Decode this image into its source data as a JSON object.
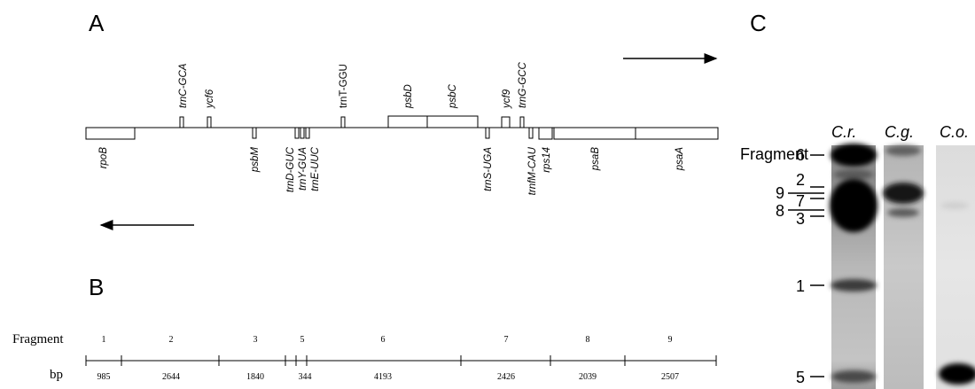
{
  "panels": {
    "a": "A",
    "b": "B",
    "c": "C"
  },
  "genes_top": [
    {
      "label": "trnC-GCA",
      "italic": true
    },
    {
      "label": "ycf6",
      "italic": true
    },
    {
      "label": "trnT-GGU",
      "italic": false
    },
    {
      "label": "psbD",
      "italic": true
    },
    {
      "label": "psbC",
      "italic": true
    },
    {
      "label": "ycf9",
      "italic": true
    },
    {
      "label": "trnG-GCC",
      "italic": true
    }
  ],
  "genes_bottom": [
    {
      "label": "rpoB"
    },
    {
      "label": "psbM"
    },
    {
      "label": "trnD-GUC"
    },
    {
      "label": "trnY-GUA"
    },
    {
      "label": "trnE-UUC"
    },
    {
      "label": "trnS-UGA"
    },
    {
      "label": "trnfM-CAU"
    },
    {
      "label": "rps14"
    },
    {
      "label": "psaB"
    },
    {
      "label": "psaA"
    }
  ],
  "fragment_map": {
    "fragment_label": "Fragment",
    "bp_label": "bp",
    "fragments": [
      "1",
      "2",
      "3",
      "5",
      "6",
      "7",
      "8",
      "9"
    ],
    "bp": [
      "985",
      "2644",
      "1840",
      "344",
      "4193",
      "2426",
      "2039",
      "2507"
    ]
  },
  "gel": {
    "fragment_label": "Fragment",
    "lanes": [
      "C.r.",
      "C.g.",
      "C.o."
    ],
    "markers": [
      "6",
      "2",
      "9",
      "7",
      "8",
      "3",
      "1",
      "5"
    ]
  }
}
